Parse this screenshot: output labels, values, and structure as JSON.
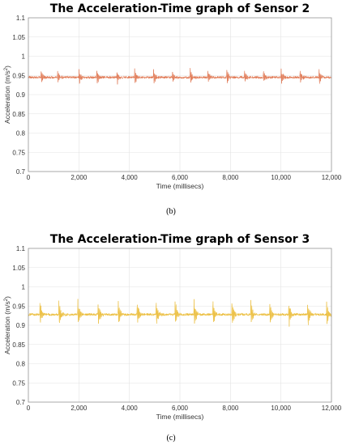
{
  "chart_data": [
    {
      "type": "line",
      "title": "The Acceleration-Time graph of Sensor 2",
      "xlabel": "Time (millisecs)",
      "ylabel_main": "Acceleration (m/s",
      "ylabel_sup": "2",
      "ylabel_close": ")",
      "xlim": [
        0,
        12000
      ],
      "ylim": [
        0.7,
        1.1
      ],
      "xticks": [
        "0",
        "2,000",
        "4,000",
        "6,000",
        "8,000",
        "10,000",
        "12,000"
      ],
      "yticks": [
        "0.7",
        "0.75",
        "0.8",
        "0.85",
        "0.9",
        "0.95",
        "1",
        "1.05",
        "1.1"
      ],
      "grid": true,
      "color": "#d9643f",
      "spike_color": "#f0a98a",
      "series": [
        {
          "baseline": 0.945,
          "spike_times_ms": [
            500,
            1150,
            2000,
            2700,
            3500,
            4200,
            4950,
            5700,
            6400,
            7100,
            7850,
            8550,
            9300,
            10000,
            10750,
            11500
          ],
          "spike_peak_high": 0.97,
          "spike_peak_low": 0.915
        }
      ],
      "caption": "(b)"
    },
    {
      "type": "line",
      "title": "The Acceleration-Time graph of Sensor 3",
      "xlabel": "Time (millisecs)",
      "ylabel_main": "Acceleration (m/s",
      "ylabel_sup": "2",
      "ylabel_close": ")",
      "xlim": [
        0,
        12000
      ],
      "ylim": [
        0.7,
        1.1
      ],
      "xticks": [
        "0",
        "2,000",
        "4,000",
        "6,000",
        "8,000",
        "10,000",
        "12,000"
      ],
      "yticks": [
        "0.7",
        "0.75",
        "0.8",
        "0.85",
        "0.9",
        "0.95",
        "1",
        "1.05",
        "1.1"
      ],
      "grid": true,
      "color": "#e8b830",
      "spike_color": "#f3d06a",
      "series": [
        {
          "baseline": 0.928,
          "spike_times_ms": [
            450,
            1200,
            1950,
            2750,
            3550,
            4300,
            5050,
            5800,
            6550,
            7300,
            8050,
            8800,
            9550,
            10300,
            11050,
            11800
          ],
          "spike_peak_high": 0.975,
          "spike_peak_low": 0.88
        }
      ],
      "caption": "(c)"
    }
  ]
}
